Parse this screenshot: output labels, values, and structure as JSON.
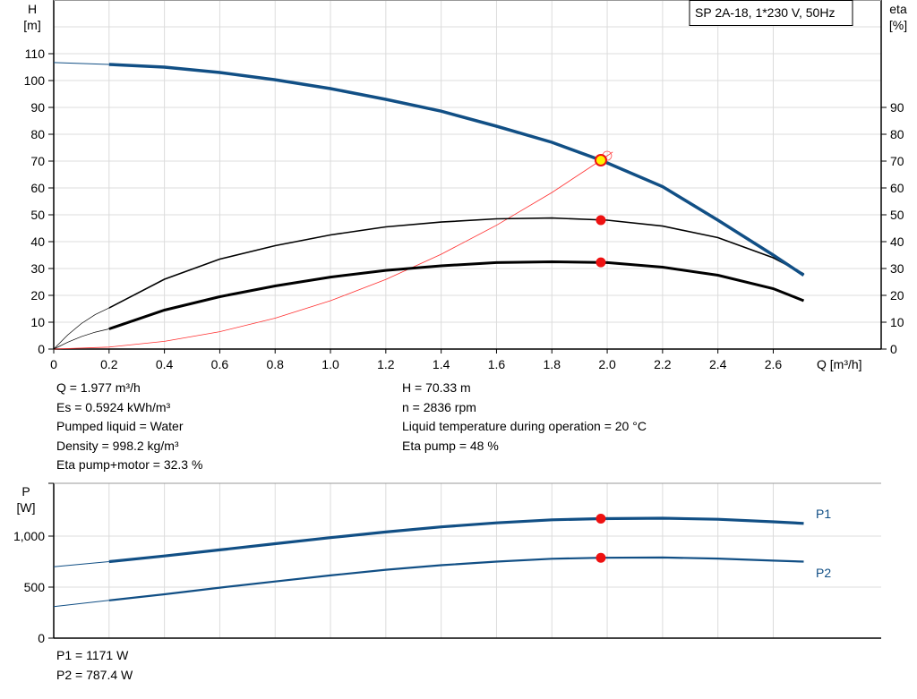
{
  "chart_data": [
    {
      "type": "line",
      "title": "SP 2A-18, 1*230 V, 50Hz",
      "xlabel": "Q [m³/h]",
      "ylabel_left": {
        "name": "H",
        "unit": "[m]"
      },
      "ylabel_right": {
        "name": "eta",
        "unit": "[%]"
      },
      "xlim": [
        0,
        2.99
      ],
      "ylim": [
        0,
        130
      ],
      "x_ticks": [
        "0",
        "0.2",
        "0.4",
        "0.6",
        "0.8",
        "1.0",
        "1.2",
        "1.4",
        "1.6",
        "1.8",
        "2.0",
        "2.2",
        "2.4",
        "2.6"
      ],
      "y_ticks_left": [
        "0",
        "10",
        "20",
        "30",
        "40",
        "50",
        "60",
        "70",
        "80",
        "90",
        "100",
        "110"
      ],
      "y_ticks_right": [
        "0",
        "10",
        "20",
        "30",
        "40",
        "50",
        "60",
        "70",
        "80",
        "90"
      ],
      "grid": true,
      "series": [
        {
          "key": "H",
          "color": "#114F85",
          "x": [
            0,
            0.2,
            0.4,
            0.6,
            0.8,
            1.0,
            1.2,
            1.4,
            1.6,
            1.8,
            1.977,
            2.2,
            2.4,
            2.6,
            2.71
          ],
          "y": [
            106.7,
            106,
            105,
            103,
            100.3,
            97,
            93,
            88.6,
            83,
            77,
            70.33,
            60.5,
            48,
            35,
            27.5
          ]
        },
        {
          "key": "eta_pump",
          "color": "#000000",
          "x": [
            0.2,
            0.4,
            0.6,
            0.8,
            1.0,
            1.2,
            1.4,
            1.6,
            1.8,
            2.0,
            2.2,
            2.4,
            2.6,
            2.71
          ],
          "y": [
            15.3,
            26,
            33.5,
            38.5,
            42.5,
            45.5,
            47.3,
            48.5,
            48.8,
            48,
            45.8,
            41.5,
            34,
            28
          ]
        },
        {
          "key": "eta_pump_motor",
          "color": "#000000",
          "x": [
            0.2,
            0.4,
            0.6,
            0.8,
            1.0,
            1.2,
            1.4,
            1.6,
            1.8,
            2.0,
            2.2,
            2.4,
            2.6,
            2.71
          ],
          "y": [
            7.5,
            14.5,
            19.5,
            23.5,
            26.8,
            29.3,
            31,
            32.2,
            32.5,
            32.2,
            30.5,
            27.5,
            22.5,
            18
          ]
        },
        {
          "key": "system_curve",
          "color": "#FF3030",
          "x": [
            0,
            0.2,
            0.4,
            0.6,
            0.8,
            1.0,
            1.2,
            1.4,
            1.6,
            1.8,
            1.977,
            2.02
          ],
          "y": [
            0,
            0.72,
            2.88,
            6.48,
            11.5,
            18,
            25.9,
            35.3,
            46.1,
            58.3,
            70.33,
            73.4
          ]
        }
      ],
      "duty_point": {
        "Q": 1.977,
        "H": 70.33,
        "eta_pump": 48,
        "eta_pump_motor": 32.3
      }
    },
    {
      "type": "line",
      "ylabel": {
        "name": "P",
        "unit": "[W]"
      },
      "xlim": [
        0,
        2.99
      ],
      "ylim": [
        0,
        1500
      ],
      "y_ticks": [
        "0",
        "500",
        "1,000"
      ],
      "grid": true,
      "series": [
        {
          "name": "P1",
          "color": "#114F85",
          "x": [
            0,
            0.2,
            0.4,
            0.6,
            0.8,
            1.0,
            1.2,
            1.4,
            1.6,
            1.8,
            1.977,
            2.2,
            2.4,
            2.6,
            2.71
          ],
          "y": [
            700,
            750,
            805,
            865,
            925,
            985,
            1040,
            1090,
            1130,
            1160,
            1171,
            1175,
            1165,
            1140,
            1125
          ]
        },
        {
          "name": "P2",
          "color": "#114F85",
          "x": [
            0,
            0.2,
            0.4,
            0.6,
            0.8,
            1.0,
            1.2,
            1.4,
            1.6,
            1.8,
            1.977,
            2.2,
            2.4,
            2.6,
            2.71
          ],
          "y": [
            310,
            370,
            430,
            495,
            555,
            615,
            670,
            715,
            750,
            778,
            787.4,
            790,
            780,
            760,
            750
          ]
        }
      ],
      "duty_point": {
        "Q": 1.977,
        "P1": 1171,
        "P2": 787.4
      }
    }
  ],
  "info_left": [
    "Q = 1.977 m³/h",
    "Es = 0.5924 kWh/m³",
    "Pumped liquid = Water",
    "Density = 998.2 kg/m³",
    "Eta pump+motor = 32.3 %"
  ],
  "info_right": [
    "H = 70.33 m",
    "n = 2836 rpm",
    "Liquid temperature during operation = 20 °C",
    "Eta pump = 48 %"
  ],
  "power_info": [
    "P1 = 1171 W",
    "P2 = 787.4 W"
  ]
}
